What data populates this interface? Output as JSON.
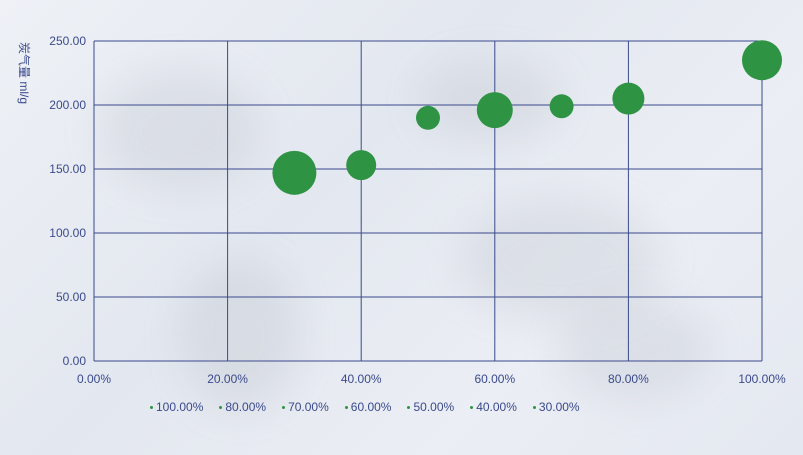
{
  "chart_data": {
    "type": "scatter",
    "ylabel": "炭气量 ml/g",
    "xlim": [
      0,
      100
    ],
    "ylim": [
      0,
      250
    ],
    "x_ticks": [
      "0.00%",
      "20.00%",
      "40.00%",
      "60.00%",
      "80.00%",
      "100.00%"
    ],
    "y_ticks": [
      "0.00",
      "50.00",
      "100.00",
      "150.00",
      "200.00",
      "250.00"
    ],
    "grid": true,
    "legend_position": "bottom",
    "marker_color": "#2e9443",
    "axis_color": "#3a4a8c",
    "legend": [
      "100.00%",
      "80.00%",
      "70.00%",
      "60.00%",
      "50.00%",
      "40.00%",
      "30.00%"
    ],
    "points": [
      {
        "x": 30,
        "y": 147,
        "size": 22
      },
      {
        "x": 40,
        "y": 153,
        "size": 15
      },
      {
        "x": 50,
        "y": 190,
        "size": 12
      },
      {
        "x": 60,
        "y": 196,
        "size": 18
      },
      {
        "x": 70,
        "y": 199,
        "size": 12
      },
      {
        "x": 80,
        "y": 205,
        "size": 16
      },
      {
        "x": 100,
        "y": 235,
        "size": 20
      }
    ]
  }
}
